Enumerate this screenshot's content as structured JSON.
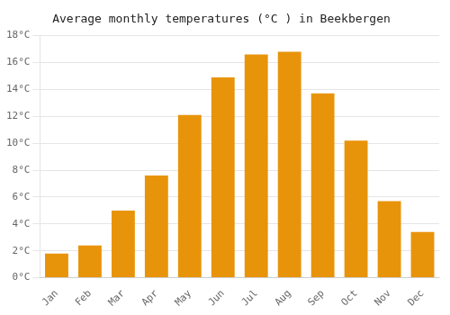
{
  "chart_data": {
    "type": "bar",
    "title": "Average monthly temperatures (°C ) in Beekbergen",
    "categories": [
      "Jan",
      "Feb",
      "Mar",
      "Apr",
      "May",
      "Jun",
      "Jul",
      "Aug",
      "Sep",
      "Oct",
      "Nov",
      "Dec"
    ],
    "values": [
      1.8,
      2.4,
      5.0,
      7.6,
      12.1,
      14.9,
      16.6,
      16.8,
      13.7,
      10.2,
      5.7,
      3.4
    ],
    "color": "#E8940A",
    "ylim": [
      0,
      18
    ],
    "yticks": [
      {
        "value": 0,
        "label": "0°C"
      },
      {
        "value": 2,
        "label": "2°C"
      },
      {
        "value": 4,
        "label": "4°C"
      },
      {
        "value": 6,
        "label": "6°C"
      },
      {
        "value": 8,
        "label": "8°C"
      },
      {
        "value": 10,
        "label": "10°C"
      },
      {
        "value": 12,
        "label": "12°C"
      },
      {
        "value": 14,
        "label": "14°C"
      },
      {
        "value": 16,
        "label": "16°C"
      },
      {
        "value": 18,
        "label": "18°C"
      }
    ],
    "grid": "y"
  }
}
